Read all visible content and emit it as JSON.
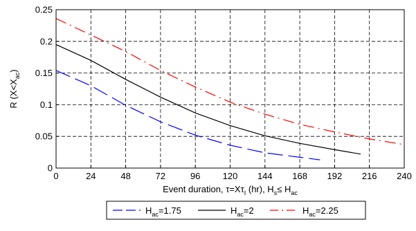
{
  "chart_data": {
    "type": "line",
    "xlabel": "Event duration, τ=Xτ",
    "xlabel_sub": "I",
    "xlabel_mid": " (hr), H",
    "xlabel_sub2": "s",
    "xlabel_tail": "≤ H",
    "xlabel_sub3": "ac",
    "ylabel": "R (X<X",
    "ylabel_sub": "ac",
    "ylabel_tail": ")",
    "xlim": [
      0,
      240
    ],
    "ylim": [
      0,
      0.25
    ],
    "x_ticks": [
      "0",
      "24",
      "48",
      "72",
      "96",
      "120",
      "144",
      "168",
      "192",
      "216",
      "240"
    ],
    "y_ticks": [
      "0",
      "0.05",
      "0.1",
      "0.15",
      "0.2",
      "0.25"
    ],
    "grid": true,
    "legend_position": "bottom",
    "series": [
      {
        "name": "H",
        "name_sub": "ac",
        "name_tail": "=1.75",
        "color": "#0000ff",
        "style": "dashed-long",
        "x": [
          0,
          24,
          48,
          72,
          96,
          120,
          144,
          168,
          182
        ],
        "y": [
          0.154,
          0.13,
          0.099,
          0.073,
          0.052,
          0.036,
          0.024,
          0.017,
          0.013
        ]
      },
      {
        "name": "H",
        "name_sub": "ac",
        "name_tail": "=2",
        "color": "#000000",
        "style": "solid",
        "x": [
          0,
          24,
          48,
          72,
          96,
          120,
          144,
          168,
          192,
          210
        ],
        "y": [
          0.195,
          0.17,
          0.14,
          0.112,
          0.087,
          0.067,
          0.051,
          0.039,
          0.029,
          0.022
        ]
      },
      {
        "name": "H",
        "name_sub": "ac",
        "name_tail": "=2.25",
        "color": "#ff0000",
        "style": "dashdot",
        "x": [
          0,
          24,
          48,
          72,
          96,
          120,
          144,
          168,
          192,
          216,
          240
        ],
        "y": [
          0.236,
          0.21,
          0.184,
          0.154,
          0.128,
          0.104,
          0.085,
          0.069,
          0.057,
          0.046,
          0.037
        ]
      }
    ]
  }
}
